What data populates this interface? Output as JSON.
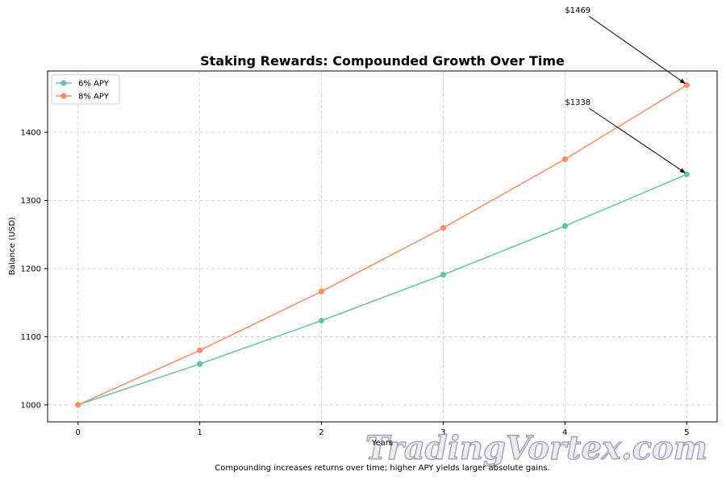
{
  "chart_data": {
    "type": "line",
    "title": "Staking Rewards: Compounded Growth Over Time",
    "xlabel": "Years",
    "ylabel": "Balance (USD)",
    "x": [
      0,
      1,
      2,
      3,
      4,
      5
    ],
    "xlim": [
      -0.25,
      5.25
    ],
    "ylim": [
      975,
      1490
    ],
    "xticks": [
      0,
      1,
      2,
      3,
      4,
      5
    ],
    "yticks": [
      1000,
      1100,
      1200,
      1300,
      1400
    ],
    "grid": true,
    "legend_position": "top-left",
    "series": [
      {
        "name": "6% APY",
        "color": "#66c2a5",
        "values": [
          1000,
          1060,
          1123.6,
          1191.0,
          1262.5,
          1338.2
        ]
      },
      {
        "name": "8% APY",
        "color": "#fc8d62",
        "values": [
          1000,
          1080,
          1166.4,
          1259.7,
          1360.5,
          1469.3
        ]
      }
    ],
    "annotations": [
      {
        "text": "$1469",
        "x": 5,
        "y": 1469.3,
        "text_x": 4.0,
        "text_y": 1575
      },
      {
        "text": "$1338",
        "x": 5,
        "y": 1338.2,
        "text_x": 4.0,
        "text_y": 1440
      }
    ],
    "caption": "Compounding increases returns over time; higher APY yields larger absolute gains."
  },
  "watermark": {
    "text": "TradingVortex.com"
  }
}
